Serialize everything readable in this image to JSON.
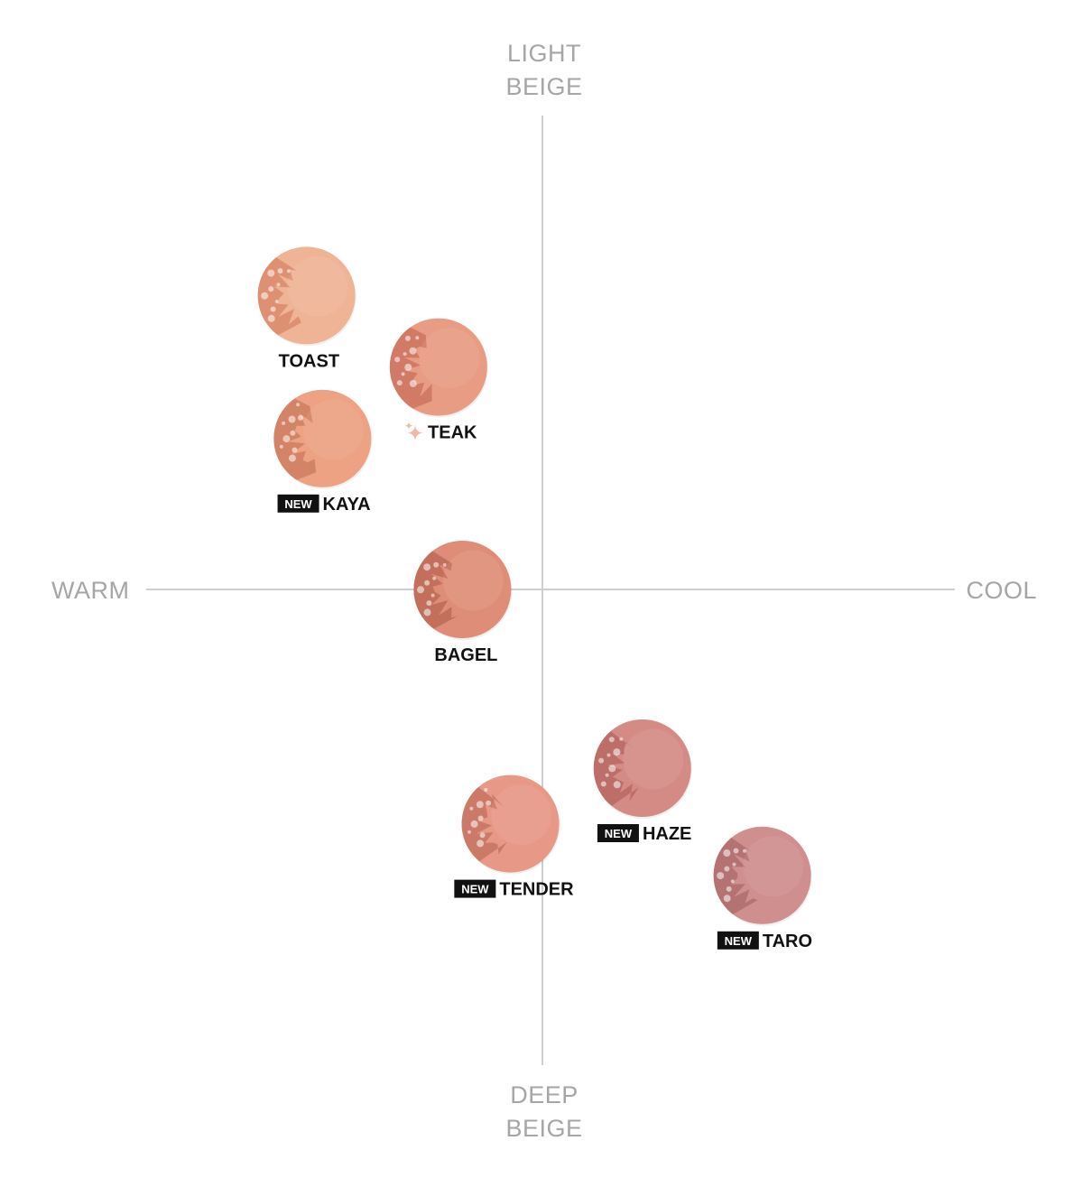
{
  "axes": {
    "top": [
      "LIGHT",
      "BEIGE"
    ],
    "bottom": [
      "DEEP",
      "BEIGE"
    ],
    "left": "WARM",
    "right": "COOL"
  },
  "badge_text": "NEW",
  "colors": {
    "axis_line": "#cfcfcf",
    "axis_text": "#a6a6a6",
    "label_text": "#111111",
    "badge_bg": "#111111"
  },
  "shades": [
    {
      "name": "TOAST",
      "is_new": false,
      "sparkle": false,
      "color": "#efb396",
      "crumb": "#d98b6c",
      "warmth": -0.59,
      "lightness": 0.74
    },
    {
      "name": "TEAK",
      "is_new": false,
      "sparkle": true,
      "color": "#e89c84",
      "crumb": "#cc7660",
      "warmth": -0.26,
      "lightness": 0.56
    },
    {
      "name": "KAYA",
      "is_new": true,
      "sparkle": false,
      "color": "#eca283",
      "crumb": "#cf7f62",
      "warmth": -0.55,
      "lightness": 0.38
    },
    {
      "name": "BAGEL",
      "is_new": false,
      "sparkle": false,
      "color": "#de8e78",
      "crumb": "#bd6b57",
      "warmth": -0.2,
      "lightness": 0.0
    },
    {
      "name": "HAZE",
      "is_new": true,
      "sparkle": false,
      "color": "#d48b86",
      "crumb": "#b86863",
      "warmth": 0.25,
      "lightness": -0.45
    },
    {
      "name": "TENDER",
      "is_new": true,
      "sparkle": false,
      "color": "#e79887",
      "crumb": "#c67463",
      "warmth": -0.08,
      "lightness": -0.59
    },
    {
      "name": "TARO",
      "is_new": true,
      "sparkle": false,
      "color": "#cf8f8f",
      "crumb": "#b06d6e",
      "warmth": 0.55,
      "lightness": -0.72
    }
  ]
}
